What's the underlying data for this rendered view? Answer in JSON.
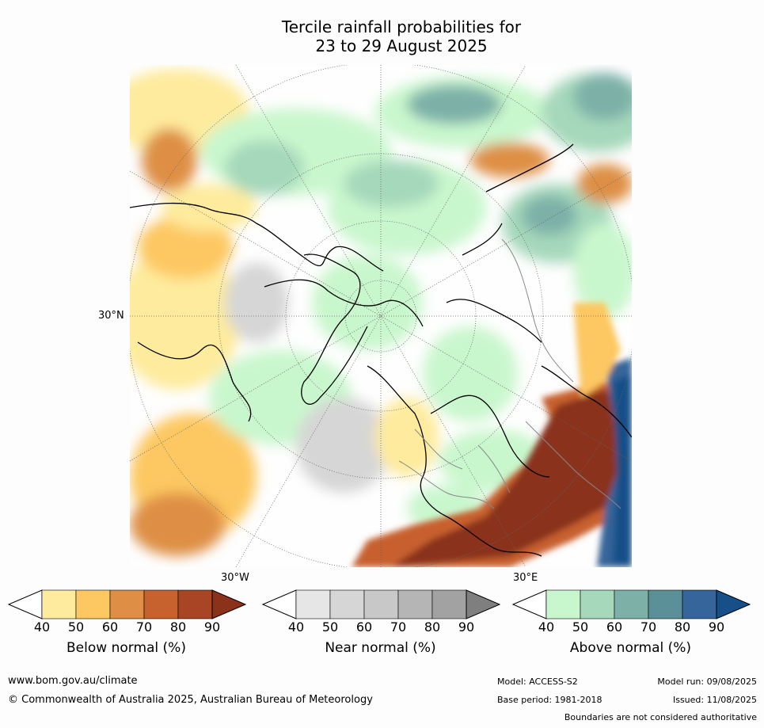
{
  "title_line1": "Tercile rainfall probabilities for",
  "title_line2": "23 to 29 August 2025",
  "map": {
    "lat_label": "30°N",
    "lon_label_left": "30°W",
    "lon_label_right": "30°E"
  },
  "colorbars": [
    {
      "title": "Below normal (%)",
      "ticks": [
        "40",
        "50",
        "60",
        "70",
        "80",
        "90"
      ],
      "colors": [
        "#ffffff",
        "#feeb9d",
        "#fdc862",
        "#de8f45",
        "#c7612e",
        "#a84524",
        "#8a321a"
      ]
    },
    {
      "title": "Near normal (%)",
      "ticks": [
        "40",
        "50",
        "60",
        "70",
        "80",
        "90"
      ],
      "colors": [
        "#ffffff",
        "#e6e6e6",
        "#d6d6d6",
        "#c8c8c8",
        "#b5b5b5",
        "#a2a2a2",
        "#7f7f7f"
      ]
    },
    {
      "title": "Above normal (%)",
      "ticks": [
        "40",
        "50",
        "60",
        "70",
        "80",
        "90"
      ],
      "colors": [
        "#ffffff",
        "#c9f7cd",
        "#a6d8bb",
        "#7db1a8",
        "#5b9098",
        "#35659a",
        "#174f88"
      ]
    }
  ],
  "footer": {
    "website": "www.bom.gov.au/climate",
    "copyright": "© Commonwealth of Australia 2025, Australian Bureau of Meteorology",
    "model": "Model: ACCESS-S2",
    "model_run": "Model run: 09/08/2025",
    "base_period": "Base period: 1981-2018",
    "issued": "Issued: 11/08/2025",
    "disclaimer": "Boundaries are not considered authoritative"
  }
}
